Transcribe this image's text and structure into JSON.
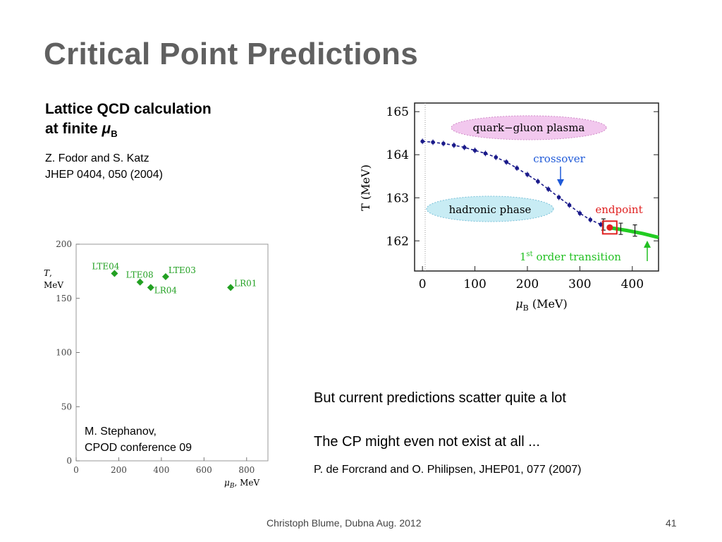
{
  "slide": {
    "title": "Critical Point Predictions",
    "lattice_heading_line1": "Lattice QCD calculation",
    "lattice_heading_line2": "at finite ",
    "lattice_heading_mu": "μ",
    "lattice_heading_sub": "B",
    "ref1_line1": "Z. Fodor and S. Katz",
    "ref1_line2": "JHEP 0404, 050 (2004)",
    "bullet1": "But current predictions scatter quite a lot",
    "bullet2": "The CP might even not exist at all ...",
    "ref2": "P. de Forcrand and O. Philipsen, JHEP01, 077 (2007)",
    "stephanov_line1": "M. Stephanov,",
    "stephanov_line2": "CPOD conference 09",
    "footer": "Christoph Blume, Dubna Aug. 2012",
    "page_number": "41"
  },
  "chart_data": [
    {
      "type": "scatter",
      "title": "",
      "xlabel": "μB, MeV",
      "ylabel": "T, MeV",
      "xlim": [
        0,
        900
      ],
      "ylim": [
        0,
        200
      ],
      "x_ticks": [
        0,
        200,
        400,
        600,
        800
      ],
      "y_ticks": [
        0,
        50,
        100,
        150,
        200
      ],
      "grid": false,
      "marker_color": "#22a022",
      "points": [
        {
          "label": "LTE04",
          "x": 180,
          "y": 173
        },
        {
          "label": "LTE08",
          "x": 300,
          "y": 165
        },
        {
          "label": "LR04",
          "x": 350,
          "y": 160
        },
        {
          "label": "LTE03",
          "x": 420,
          "y": 170
        },
        {
          "label": "LR01",
          "x": 725,
          "y": 160
        }
      ]
    },
    {
      "type": "line",
      "title": "",
      "xlabel": "μB (MeV)",
      "ylabel": "T (MeV)",
      "xlim": [
        -15,
        450
      ],
      "ylim": [
        161.3,
        165.2
      ],
      "x_ticks": [
        0,
        100,
        200,
        300,
        400
      ],
      "y_ticks": [
        162,
        163,
        164,
        165
      ],
      "series": [
        {
          "style": "crossover",
          "color": "#1a1a8a",
          "x": [
            0,
            20,
            40,
            60,
            80,
            100,
            120,
            140,
            160,
            180,
            200,
            220,
            240,
            260,
            280,
            300,
            320,
            340
          ],
          "y": [
            164.31,
            164.29,
            164.26,
            164.22,
            164.17,
            164.1,
            164.03,
            163.94,
            163.83,
            163.69,
            163.54,
            163.38,
            163.2,
            163.01,
            162.83,
            162.64,
            162.49,
            162.38
          ]
        },
        {
          "style": "first_order",
          "color": "#22cc22",
          "x": [
            360,
            390,
            420,
            450
          ],
          "y": [
            162.3,
            162.24,
            162.17,
            162.08
          ]
        }
      ],
      "error_points": [
        {
          "x": 345,
          "y": 162.38
        },
        {
          "x": 378,
          "y": 162.28
        },
        {
          "x": 405,
          "y": 162.24
        }
      ],
      "endpoint": {
        "x": 357,
        "y": 162.31,
        "color": "#e02020"
      },
      "annotations": {
        "qgp": "quark−gluon plasma",
        "hadronic": "hadronic phase",
        "crossover": "crossover",
        "endpoint": "endpoint",
        "first_order_sup": "st",
        "first_order_pre": "1",
        "first_order_post": " order transition"
      },
      "colors": {
        "qgp_fill": "#f2c8ee",
        "hadronic_fill": "#c8ecf4",
        "annot_blue": "#1f5ad8",
        "annot_red": "#e02020",
        "annot_green": "#22c022"
      }
    }
  ]
}
